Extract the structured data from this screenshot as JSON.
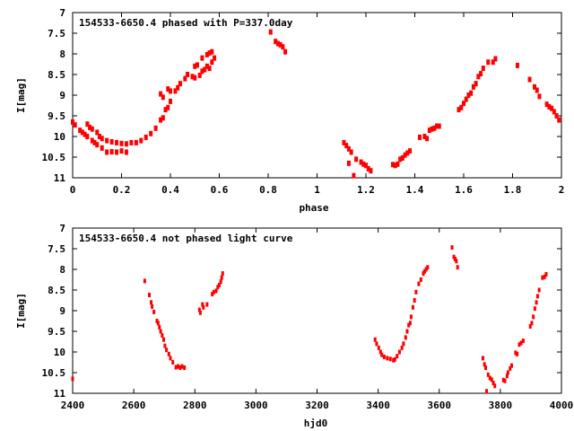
{
  "point_color": "#ff0000",
  "chart_data": [
    {
      "type": "scatter",
      "title": "154533-6650.4 phased with P=337.0day",
      "xlabel": "phase",
      "ylabel": "I[mag]",
      "xlim": [
        0,
        2
      ],
      "ylim": [
        11,
        7
      ],
      "y_inverted": true,
      "xticks": [
        "0",
        "0.2",
        "0.4",
        "0.6",
        "0.8",
        "1",
        "1.2",
        "1.4",
        "1.6",
        "1.8",
        "2"
      ],
      "xtick_values": [
        0,
        0.2,
        0.4,
        0.6,
        0.8,
        1,
        1.2,
        1.4,
        1.6,
        1.8,
        2
      ],
      "yticks": [
        "7",
        "7.5",
        "8",
        "8.5",
        "9",
        "9.5",
        "10",
        "10.5",
        "11"
      ],
      "ytick_values": [
        7,
        7.5,
        8,
        8.5,
        9,
        9.5,
        10,
        10.5,
        11
      ],
      "points": [
        [
          0,
          9.65
        ],
        [
          0.01,
          9.72
        ],
        [
          0.03,
          9.85
        ],
        [
          0.04,
          9.9
        ],
        [
          0.05,
          9.95
        ],
        [
          0.06,
          10.0
        ],
        [
          0.08,
          10.1
        ],
        [
          0.09,
          10.15
        ],
        [
          0.1,
          10.2
        ],
        [
          0.12,
          10.28
        ],
        [
          0.14,
          10.38
        ],
        [
          0.16,
          10.37
        ],
        [
          0.18,
          10.38
        ],
        [
          0.2,
          10.35
        ],
        [
          0.22,
          10.38
        ],
        [
          0.06,
          9.7
        ],
        [
          0.07,
          9.78
        ],
        [
          0.08,
          9.82
        ],
        [
          0.1,
          9.9
        ],
        [
          0.11,
          10.0
        ],
        [
          0.12,
          10.05
        ],
        [
          0.14,
          10.1
        ],
        [
          0.16,
          10.13
        ],
        [
          0.18,
          10.15
        ],
        [
          0.2,
          10.17
        ],
        [
          0.22,
          10.18
        ],
        [
          0.24,
          10.15
        ],
        [
          0.26,
          10.15
        ],
        [
          0.28,
          10.1
        ],
        [
          0.3,
          10.02
        ],
        [
          0.32,
          9.93
        ],
        [
          0.34,
          9.8
        ],
        [
          0.36,
          9.6
        ],
        [
          0.37,
          9.55
        ],
        [
          0.38,
          9.35
        ],
        [
          0.39,
          9.3
        ],
        [
          0.4,
          9.15
        ],
        [
          0.36,
          8.97
        ],
        [
          0.37,
          9.05
        ],
        [
          0.39,
          8.85
        ],
        [
          0.4,
          8.9
        ],
        [
          0.42,
          8.9
        ],
        [
          0.43,
          8.82
        ],
        [
          0.44,
          8.72
        ],
        [
          0.46,
          8.6
        ],
        [
          0.47,
          8.5
        ],
        [
          0.49,
          8.55
        ],
        [
          0.5,
          8.58
        ],
        [
          0.52,
          8.52
        ],
        [
          0.53,
          8.42
        ],
        [
          0.54,
          8.38
        ],
        [
          0.55,
          8.3
        ],
        [
          0.56,
          8.35
        ],
        [
          0.57,
          8.2
        ],
        [
          0.58,
          8.1
        ],
        [
          0.5,
          8.3
        ],
        [
          0.51,
          8.27
        ],
        [
          0.53,
          8.1
        ],
        [
          0.55,
          8.02
        ],
        [
          0.56,
          7.98
        ],
        [
          0.57,
          7.95
        ],
        [
          0.81,
          7.47
        ],
        [
          0.83,
          7.7
        ],
        [
          0.84,
          7.75
        ],
        [
          0.85,
          7.78
        ],
        [
          0.86,
          7.83
        ],
        [
          0.87,
          7.95
        ],
        [
          1.11,
          10.15
        ],
        [
          1.12,
          10.22
        ],
        [
          1.13,
          10.3
        ],
        [
          1.14,
          10.38
        ],
        [
          1.13,
          10.65
        ],
        [
          1.15,
          10.95
        ],
        [
          1.16,
          10.55
        ],
        [
          1.18,
          10.62
        ],
        [
          1.19,
          10.67
        ],
        [
          1.2,
          10.7
        ],
        [
          1.21,
          10.78
        ],
        [
          1.22,
          10.83
        ],
        [
          1.31,
          10.68
        ],
        [
          1.32,
          10.7
        ],
        [
          1.33,
          10.67
        ],
        [
          1.34,
          10.55
        ],
        [
          1.35,
          10.52
        ],
        [
          1.36,
          10.45
        ],
        [
          1.37,
          10.4
        ],
        [
          1.38,
          10.35
        ],
        [
          1.42,
          10.02
        ],
        [
          1.44,
          10.0
        ],
        [
          1.45,
          10.05
        ],
        [
          1.46,
          9.85
        ],
        [
          1.47,
          9.82
        ],
        [
          1.48,
          9.8
        ],
        [
          1.49,
          9.75
        ],
        [
          1.5,
          9.75
        ],
        [
          1.58,
          9.35
        ],
        [
          1.59,
          9.3
        ],
        [
          1.6,
          9.2
        ],
        [
          1.61,
          9.1
        ],
        [
          1.62,
          9.0
        ],
        [
          1.63,
          8.95
        ],
        [
          1.64,
          8.8
        ],
        [
          1.65,
          8.72
        ],
        [
          1.66,
          8.55
        ],
        [
          1.67,
          8.48
        ],
        [
          1.68,
          8.35
        ],
        [
          1.7,
          8.2
        ],
        [
          1.72,
          8.2
        ],
        [
          1.73,
          8.12
        ],
        [
          1.82,
          8.28
        ],
        [
          1.87,
          8.62
        ],
        [
          1.89,
          8.8
        ],
        [
          1.9,
          8.88
        ],
        [
          1.91,
          9.03
        ],
        [
          1.94,
          9.22
        ],
        [
          1.95,
          9.28
        ],
        [
          1.96,
          9.32
        ],
        [
          1.97,
          9.4
        ],
        [
          1.98,
          9.5
        ],
        [
          1.99,
          9.6
        ]
      ]
    },
    {
      "type": "scatter",
      "title": "154533-6650.4 not phased light curve",
      "xlabel": "hjd0",
      "ylabel": "I[mag]",
      "xlim": [
        2400,
        4000
      ],
      "ylim": [
        11,
        7
      ],
      "y_inverted": true,
      "xticks": [
        "2400",
        "2600",
        "2800",
        "3000",
        "3200",
        "3400",
        "3600",
        "3800",
        "4000"
      ],
      "xtick_values": [
        2400,
        2600,
        2800,
        3000,
        3200,
        3400,
        3600,
        3800,
        4000
      ],
      "yticks": [
        "7",
        "7.5",
        "8",
        "8.5",
        "9",
        "9.5",
        "10",
        "10.5",
        "11"
      ],
      "ytick_values": [
        7,
        7.5,
        8,
        8.5,
        9,
        9.5,
        10,
        10.5,
        11
      ],
      "points": [
        [
          2400,
          10.65
        ],
        [
          2636,
          8.28
        ],
        [
          2651,
          8.62
        ],
        [
          2657,
          8.8
        ],
        [
          2660,
          8.9
        ],
        [
          2666,
          9.03
        ],
        [
          2676,
          9.25
        ],
        [
          2680,
          9.3
        ],
        [
          2684,
          9.4
        ],
        [
          2688,
          9.5
        ],
        [
          2693,
          9.6
        ],
        [
          2698,
          9.7
        ],
        [
          2702,
          9.85
        ],
        [
          2707,
          9.95
        ],
        [
          2715,
          10.05
        ],
        [
          2720,
          10.15
        ],
        [
          2728,
          10.25
        ],
        [
          2738,
          10.37
        ],
        [
          2745,
          10.35
        ],
        [
          2752,
          10.38
        ],
        [
          2758,
          10.35
        ],
        [
          2766,
          10.38
        ],
        [
          2815,
          8.98
        ],
        [
          2818,
          9.05
        ],
        [
          2825,
          8.85
        ],
        [
          2828,
          8.92
        ],
        [
          2840,
          8.85
        ],
        [
          2857,
          8.6
        ],
        [
          2862,
          8.55
        ],
        [
          2870,
          8.52
        ],
        [
          2875,
          8.43
        ],
        [
          2880,
          8.38
        ],
        [
          2885,
          8.3
        ],
        [
          2888,
          8.2
        ],
        [
          2891,
          8.1
        ],
        [
          3390,
          9.7
        ],
        [
          3395,
          9.8
        ],
        [
          3402,
          9.9
        ],
        [
          3408,
          10.0
        ],
        [
          3412,
          10.07
        ],
        [
          3420,
          10.12
        ],
        [
          3430,
          10.15
        ],
        [
          3440,
          10.17
        ],
        [
          3450,
          10.2
        ],
        [
          3455,
          10.18
        ],
        [
          3462,
          10.1
        ],
        [
          3470,
          10.0
        ],
        [
          3478,
          9.9
        ],
        [
          3483,
          9.8
        ],
        [
          3490,
          9.65
        ],
        [
          3495,
          9.5
        ],
        [
          3500,
          9.35
        ],
        [
          3505,
          9.3
        ],
        [
          3508,
          9.15
        ],
        [
          3514,
          8.92
        ],
        [
          3519,
          8.75
        ],
        [
          3524,
          8.55
        ],
        [
          3533,
          8.35
        ],
        [
          3540,
          8.25
        ],
        [
          3548,
          8.1
        ],
        [
          3552,
          8.05
        ],
        [
          3557,
          8.0
        ],
        [
          3562,
          7.95
        ],
        [
          3642,
          7.47
        ],
        [
          3648,
          7.7
        ],
        [
          3652,
          7.75
        ],
        [
          3656,
          7.8
        ],
        [
          3660,
          7.95
        ],
        [
          3743,
          10.15
        ],
        [
          3748,
          10.3
        ],
        [
          3752,
          10.38
        ],
        [
          3755,
          10.95
        ],
        [
          3760,
          10.55
        ],
        [
          3766,
          10.63
        ],
        [
          3772,
          10.67
        ],
        [
          3777,
          10.75
        ],
        [
          3782,
          10.82
        ],
        [
          3810,
          10.68
        ],
        [
          3815,
          10.7
        ],
        [
          3822,
          10.58
        ],
        [
          3825,
          10.5
        ],
        [
          3832,
          10.4
        ],
        [
          3837,
          10.33
        ],
        [
          3850,
          10.02
        ],
        [
          3855,
          10.05
        ],
        [
          3862,
          9.82
        ],
        [
          3868,
          9.78
        ],
        [
          3875,
          9.73
        ],
        [
          3898,
          9.38
        ],
        [
          3903,
          9.3
        ],
        [
          3908,
          9.15
        ],
        [
          3913,
          8.95
        ],
        [
          3918,
          8.8
        ],
        [
          3922,
          8.65
        ],
        [
          3927,
          8.5
        ],
        [
          3938,
          8.2
        ],
        [
          3945,
          8.18
        ],
        [
          3950,
          8.12
        ]
      ]
    }
  ]
}
